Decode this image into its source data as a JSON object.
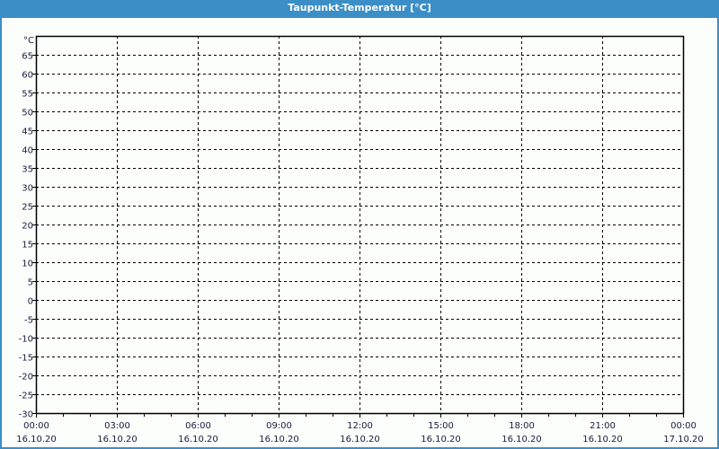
{
  "window": {
    "title": "Taupunkt-Temperatur [°C]"
  },
  "chart_data": {
    "type": "line",
    "title": "Taupunkt-Temperatur [°C]",
    "ylabel": "°C",
    "ylim": [
      -30,
      70
    ],
    "yticks": [
      -30,
      -25,
      -20,
      -15,
      -10,
      -5,
      0,
      5,
      10,
      15,
      20,
      25,
      30,
      35,
      40,
      45,
      50,
      55,
      60,
      65
    ],
    "xticks": [
      {
        "time": "00:00",
        "date": "16.10.20"
      },
      {
        "time": "03:00",
        "date": "16.10.20"
      },
      {
        "time": "06:00",
        "date": "16.10.20"
      },
      {
        "time": "09:00",
        "date": "16.10.20"
      },
      {
        "time": "12:00",
        "date": "16.10.20"
      },
      {
        "time": "15:00",
        "date": "16.10.20"
      },
      {
        "time": "18:00",
        "date": "16.10.20"
      },
      {
        "time": "21:00",
        "date": "16.10.20"
      },
      {
        "time": "00:00",
        "date": "17.10.20"
      }
    ],
    "grid": true,
    "series": []
  }
}
